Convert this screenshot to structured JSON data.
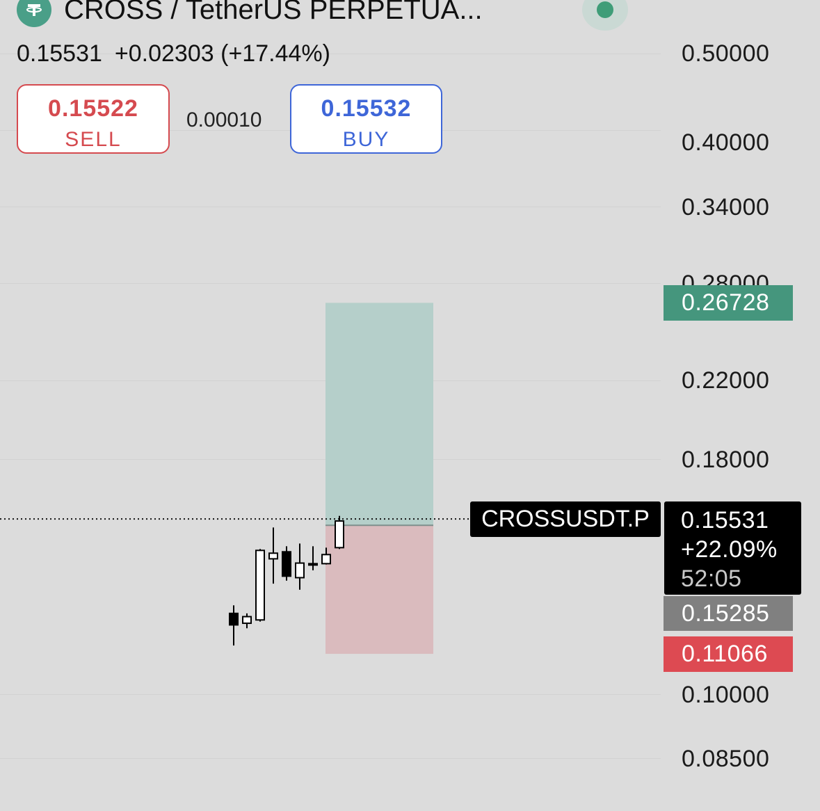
{
  "header": {
    "title": "CROSS / TetherUS PERPETUA...",
    "logo_icon": "tether-icon",
    "status_icon": "market-open-dot-icon",
    "last_price": "0.15531",
    "change": "+0.02303",
    "change_pct": "(+17.44%)"
  },
  "trade": {
    "sell_price": "0.15522",
    "sell_label": "SELL",
    "spread": "0.00010",
    "buy_price": "0.15532",
    "buy_label": "BUY"
  },
  "axis_labels": [
    "0.50000",
    "0.40000",
    "0.34000",
    "0.28000",
    "0.22000",
    "0.18000",
    "0.10000",
    "0.08500"
  ],
  "tags": {
    "target": "0.26728",
    "symbol": "CROSSUSDT.P",
    "last": "0.15531",
    "last_change": "+22.09%",
    "timer": "52:05",
    "entry": "0.15285",
    "stop": "0.11066"
  },
  "colors": {
    "background": "#dcdcdc",
    "bull_candle": "#ffffff",
    "bear_candle": "#000000",
    "profit_zone": "#b5cfca",
    "loss_zone": "#dabbbe",
    "target_tag": "#45967d",
    "entry_tag": "#808080",
    "stop_tag": "#dd4a52",
    "sell": "#d54a4f",
    "buy": "#3e66d8"
  },
  "chart_data": {
    "type": "candlestick",
    "y_scale": "log",
    "ylim": [
      0.08,
      0.56
    ],
    "y_ticks": [
      0.5,
      0.4,
      0.34,
      0.28,
      0.22,
      0.18,
      0.1,
      0.085
    ],
    "grid": true,
    "candles": [
      {
        "o": 0.1225,
        "h": 0.125,
        "l": 0.113,
        "c": 0.119
      },
      {
        "o": 0.1195,
        "h": 0.1225,
        "l": 0.118,
        "c": 0.1215
      },
      {
        "o": 0.1205,
        "h": 0.144,
        "l": 0.12,
        "c": 0.1435
      },
      {
        "o": 0.1405,
        "h": 0.152,
        "l": 0.132,
        "c": 0.1425
      },
      {
        "o": 0.143,
        "h": 0.145,
        "l": 0.133,
        "c": 0.1345
      },
      {
        "o": 0.134,
        "h": 0.146,
        "l": 0.13,
        "c": 0.139
      },
      {
        "o": 0.1385,
        "h": 0.145,
        "l": 0.1365,
        "c": 0.1388
      },
      {
        "o": 0.1388,
        "h": 0.1445,
        "l": 0.1385,
        "c": 0.142
      },
      {
        "o": 0.1445,
        "h": 0.1565,
        "l": 0.144,
        "c": 0.1545
      }
    ],
    "position": {
      "entry": 0.15285,
      "target": 0.26728,
      "stop": 0.11066
    },
    "last_price": 0.15531
  }
}
